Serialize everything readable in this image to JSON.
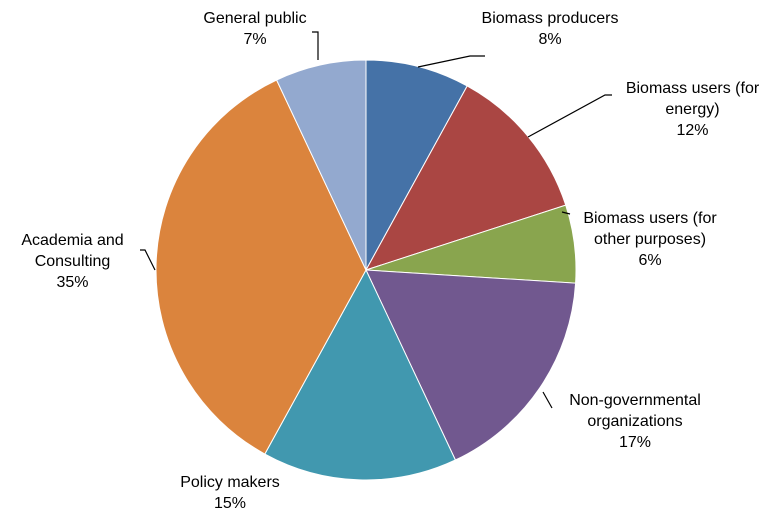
{
  "chart_data": {
    "type": "pie",
    "categories": [
      "Biomass producers",
      "Biomass users (for energy)",
      "Biomass users (for other purposes)",
      "Non-governmental organizations",
      "Policy makers",
      "Academia and Consulting",
      "General public"
    ],
    "values": [
      8,
      12,
      6,
      17,
      15,
      35,
      7
    ],
    "value_labels": [
      "8%",
      "12%",
      "6%",
      "17%",
      "15%",
      "35%",
      "7%"
    ],
    "colors": [
      "#4572a7",
      "#aa4643",
      "#89a54e",
      "#71588f",
      "#4198af",
      "#db843d",
      "#93a9cf"
    ]
  }
}
